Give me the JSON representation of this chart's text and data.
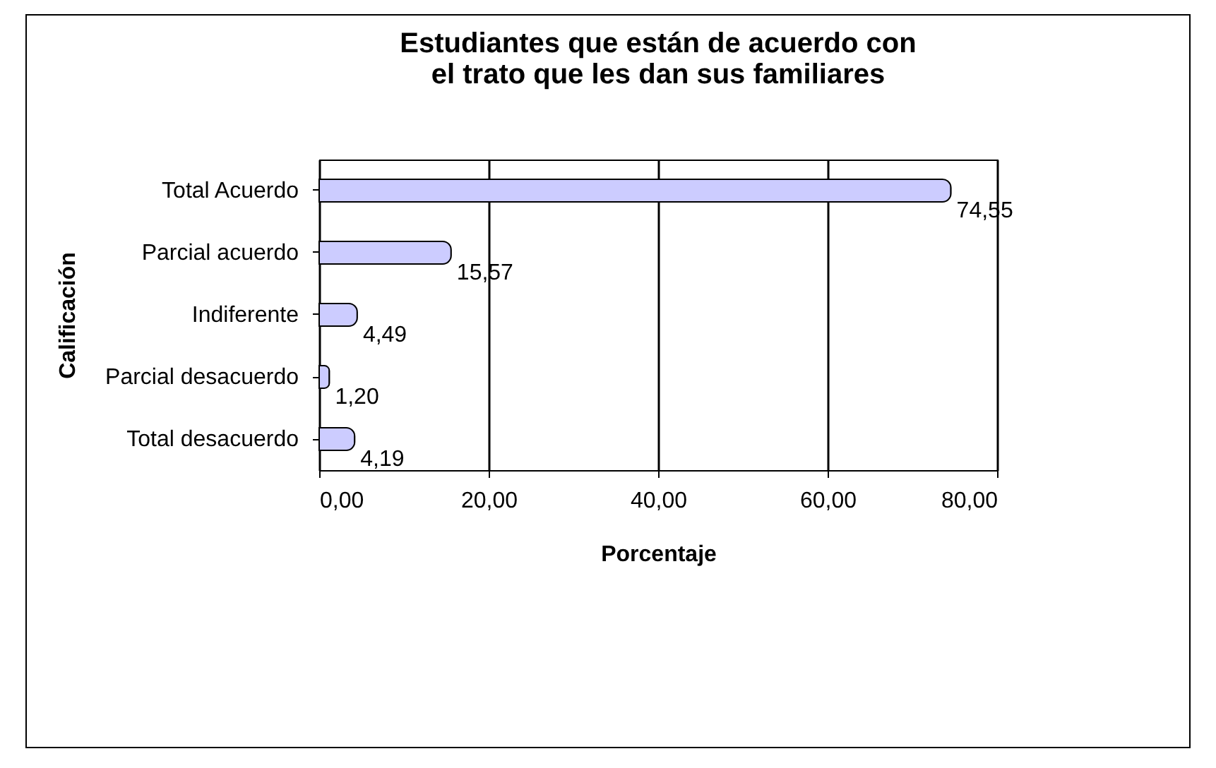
{
  "chart_data": {
    "type": "bar",
    "orientation": "horizontal",
    "title": "Estudiantes que  están  de acuerdo  con  el  trato que  les dan  sus  familiares",
    "xlabel": "Porcentaje",
    "ylabel": "Calificación",
    "categories": [
      "Total  Acuerdo",
      "Parcial  acuerdo",
      "Indiferente",
      "Parcial  desacuerdo",
      "Total desacuerdo"
    ],
    "values": [
      74.55,
      15.57,
      4.49,
      1.2,
      4.19
    ],
    "value_labels": [
      "74,55",
      "15,57",
      "4,49",
      "1,20",
      "4,19"
    ],
    "color": "#ccccff",
    "xlim": [
      0,
      80
    ],
    "xticks": [
      {
        "value": 0,
        "label": "0,00"
      },
      {
        "value": 20,
        "label": "20,00"
      },
      {
        "value": 40,
        "label": "40,00"
      },
      {
        "value": 60,
        "label": "60,00"
      },
      {
        "value": 80,
        "label": "80,00"
      }
    ],
    "grid": "x"
  }
}
